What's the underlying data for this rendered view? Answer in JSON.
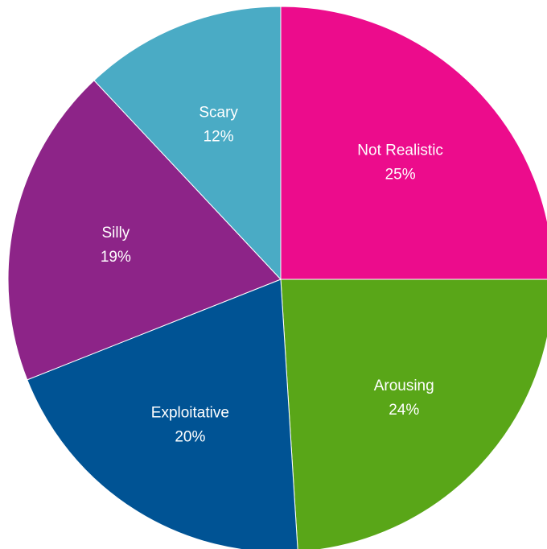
{
  "chart_data": {
    "type": "pie",
    "start_angle_deg": 0,
    "direction": "clockwise",
    "slices": [
      {
        "label": "Not Realistic",
        "value": 25,
        "value_label": "25%",
        "color": "#EC0C8C"
      },
      {
        "label": "Arousing",
        "value": 24,
        "value_label": "24%",
        "color": "#59A618"
      },
      {
        "label": "Exploitative",
        "value": 20,
        "value_label": "20%",
        "color": "#005394"
      },
      {
        "label": "Silly",
        "value": 19,
        "value_label": "19%",
        "color": "#8D2488"
      },
      {
        "label": "Scary",
        "value": 12,
        "value_label": "12%",
        "color": "#4AABC5"
      }
    ]
  }
}
